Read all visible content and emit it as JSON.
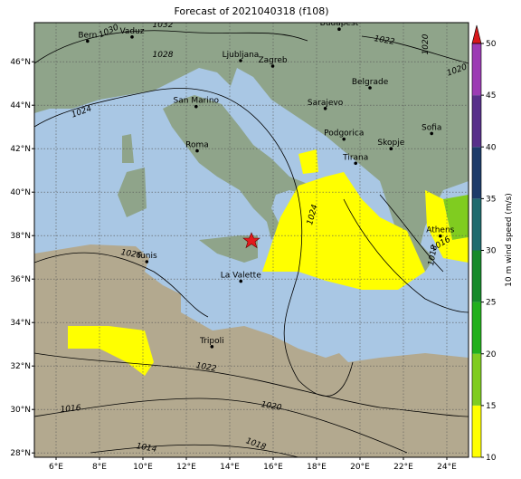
{
  "title": "Forecast of 2021040318 (f108)",
  "lon_ticks": [
    {
      "value": 6,
      "label": "6°E"
    },
    {
      "value": 8,
      "label": "8°E"
    },
    {
      "value": 10,
      "label": "10°E"
    },
    {
      "value": 12,
      "label": "12°E"
    },
    {
      "value": 14,
      "label": "14°E"
    },
    {
      "value": 16,
      "label": "16°E"
    },
    {
      "value": 18,
      "label": "18°E"
    },
    {
      "value": 20,
      "label": "20°E"
    },
    {
      "value": 22,
      "label": "22°E"
    },
    {
      "value": 24,
      "label": "24°E"
    }
  ],
  "lat_ticks": [
    {
      "value": 28,
      "label": "28°N"
    },
    {
      "value": 30,
      "label": "30°N"
    },
    {
      "value": 32,
      "label": "32°N"
    },
    {
      "value": 34,
      "label": "34°N"
    },
    {
      "value": 36,
      "label": "36°N"
    },
    {
      "value": 38,
      "label": "38°N"
    },
    {
      "value": 40,
      "label": "40°N"
    },
    {
      "value": 42,
      "label": "42°N"
    },
    {
      "value": 44,
      "label": "44°N"
    },
    {
      "value": 46,
      "label": "46°N"
    }
  ],
  "cities": [
    "Bern",
    "Vaduz",
    "Budapest",
    "Ljubljana",
    "Zagreb",
    "Belgrade",
    "San Marino",
    "Sarajevo",
    "Sofia",
    "Podgorica",
    "Skopje",
    "Roma",
    "Tirana",
    "Athens",
    "Tunis",
    "La Valette",
    "Tripoli"
  ],
  "contour_labels": [
    "1030",
    "1032",
    "1028",
    "1022",
    "1020",
    "1020",
    "1024",
    "1024",
    "1026",
    "1018",
    "1016",
    "1022",
    "1020",
    "1016",
    "1014",
    "1018"
  ],
  "colorbar": {
    "label": "10 m wind speed (m/s)",
    "lim": [
      10,
      50
    ],
    "ticks": [
      10,
      15,
      20,
      25,
      30,
      35,
      40,
      45,
      50
    ],
    "colors": [
      "#ffff00",
      "#80cc20",
      "#22b01c",
      "#168a2a",
      "#1f6b6e",
      "#1e3c6a",
      "#58308a",
      "#9c3cb4"
    ],
    "extend_color": "#d7191c"
  }
}
